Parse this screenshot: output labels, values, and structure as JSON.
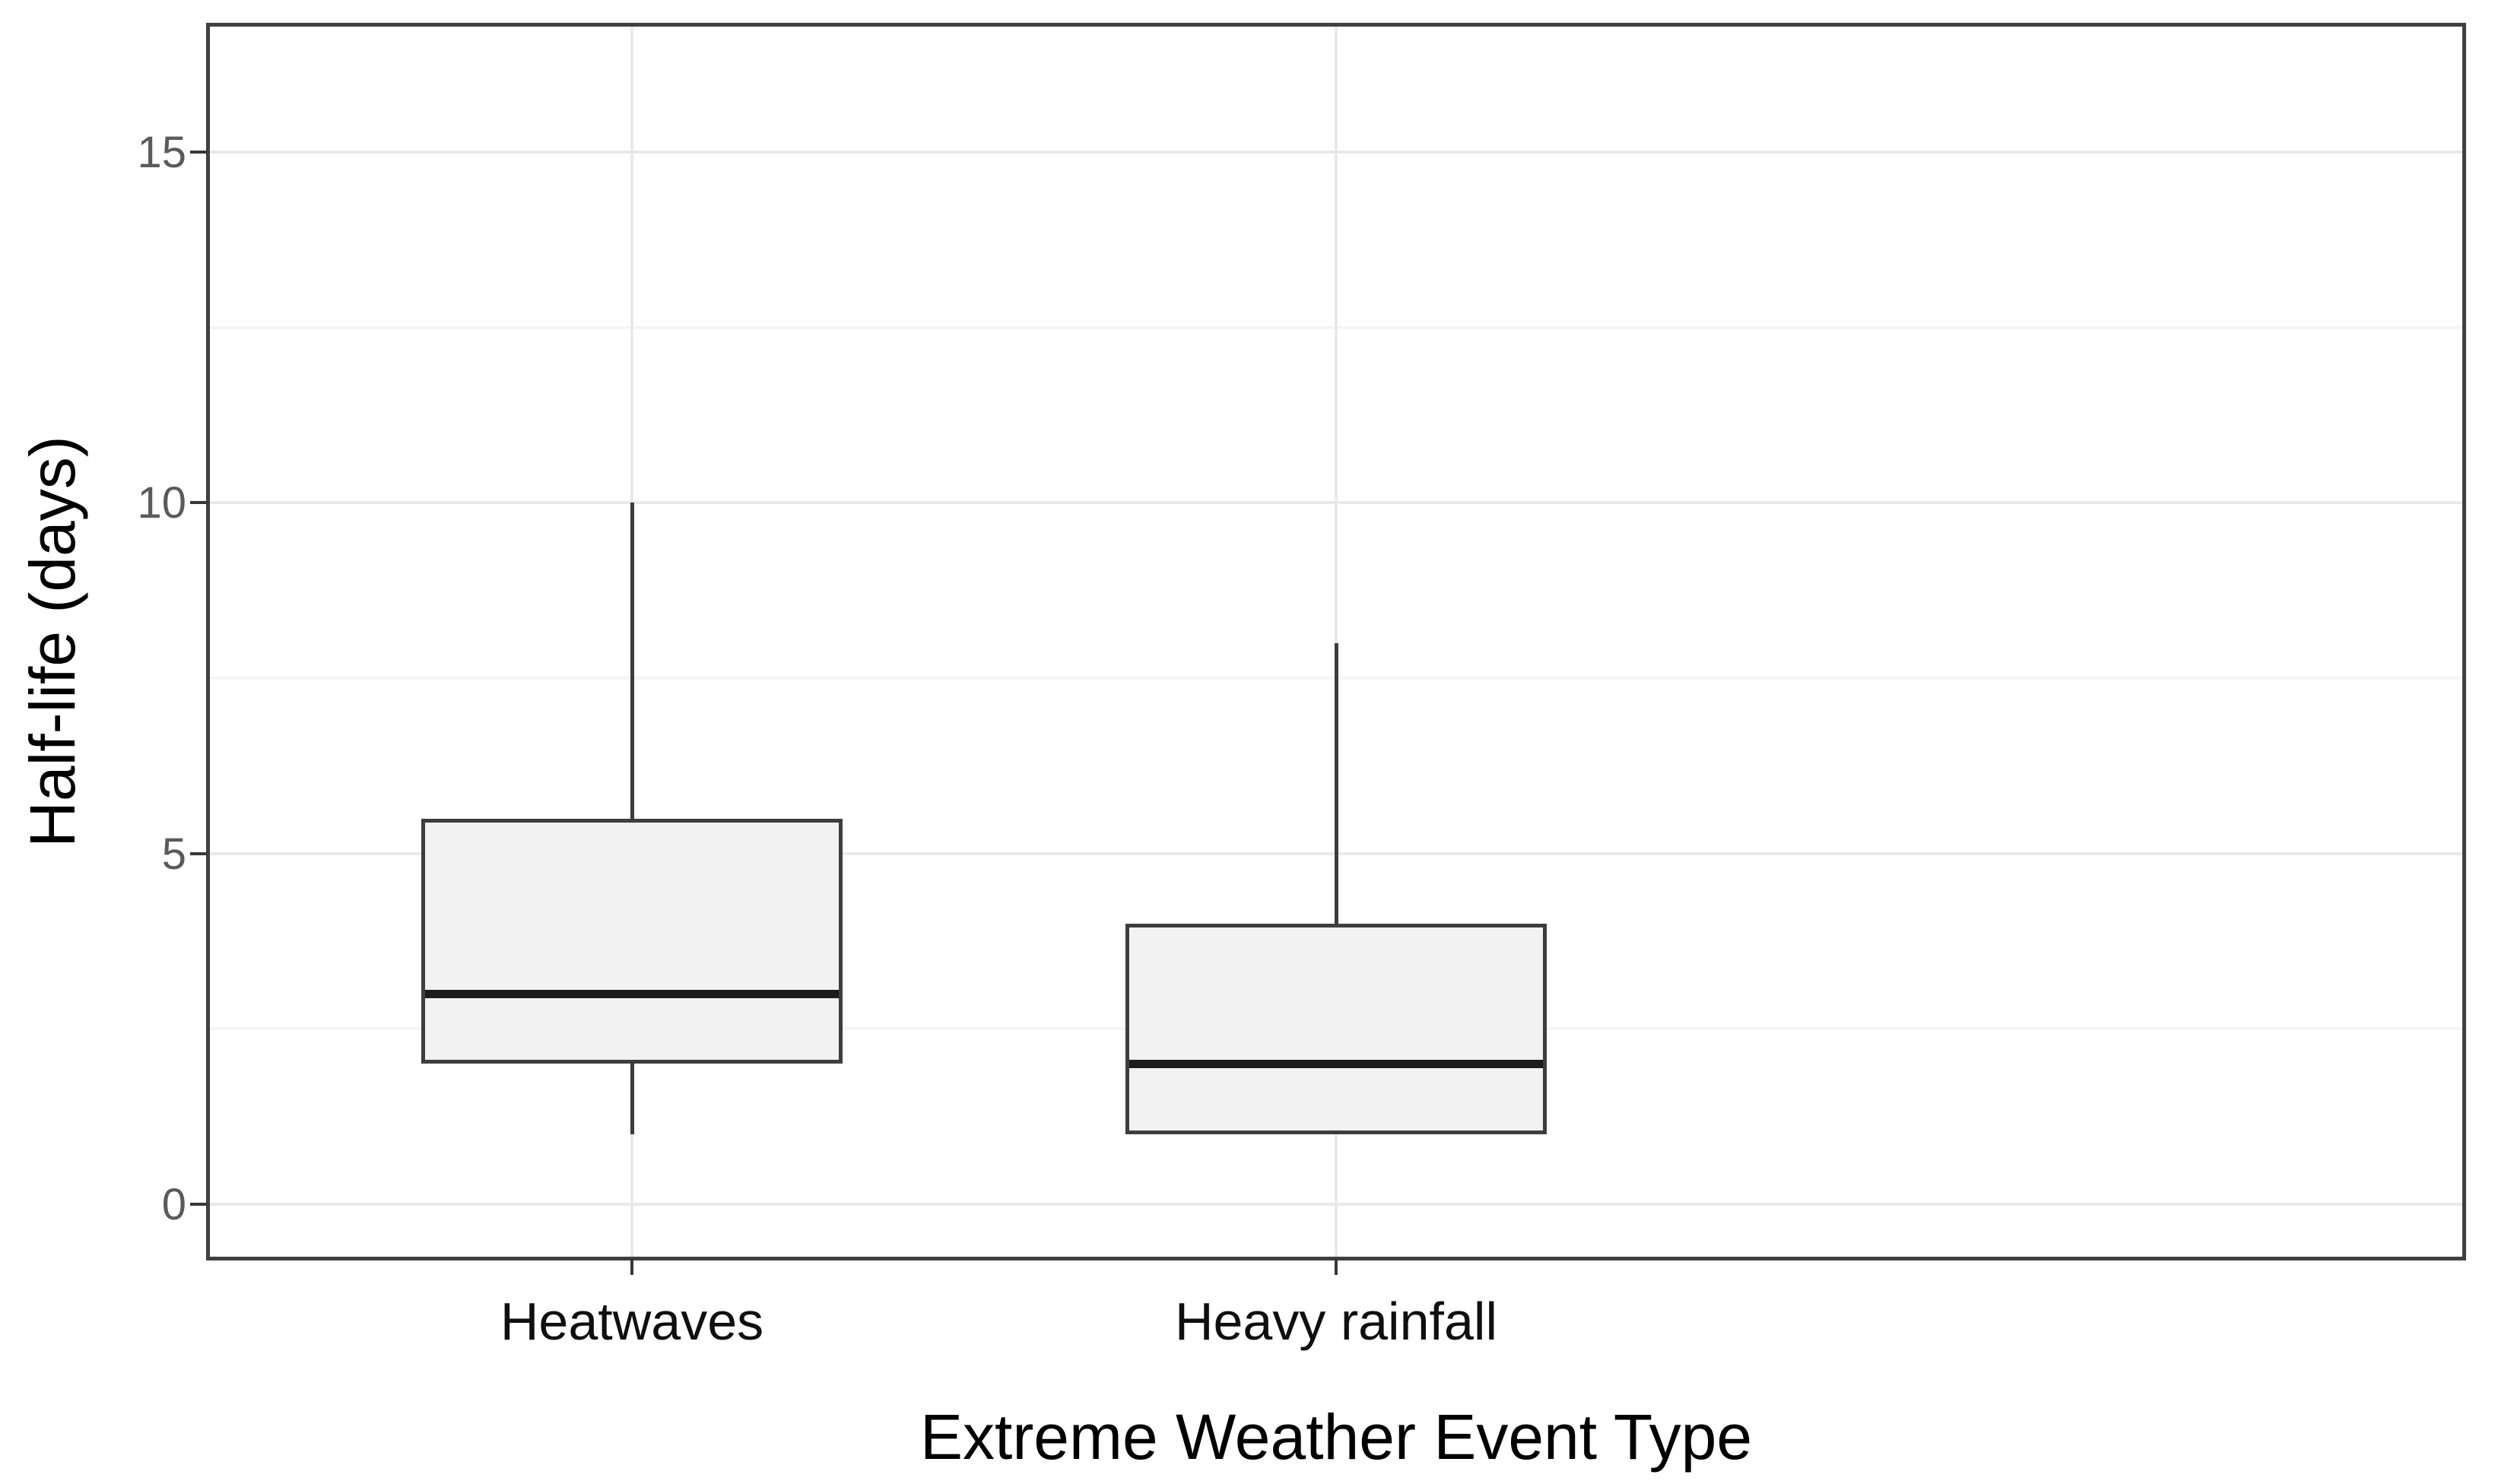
{
  "chart_data": {
    "type": "boxplot",
    "title": "",
    "xlabel": "Extreme Weather Event Type",
    "ylabel": "Half-life (days)",
    "categories": [
      "Heatwaves",
      "Heavy rainfall"
    ],
    "series": [
      {
        "name": "Heatwaves",
        "min": 1,
        "q1": 2,
        "median": 3,
        "q3": 5.5,
        "max": 10
      },
      {
        "name": "Heavy rainfall",
        "min": 1,
        "q1": 1,
        "median": 2,
        "q3": 4,
        "max": 8
      }
    ],
    "y_ticks": [
      "15",
      "10",
      "5",
      "0"
    ],
    "y_tick_values": [
      15,
      10,
      5,
      0
    ],
    "y_minor_gridline_values": [
      12.5,
      7.5,
      2.5
    ],
    "ylim": [
      -0.77,
      16.81
    ],
    "grid": "horizontal major + minor gridlines; vertical major gridline at each category center",
    "legend": "none"
  },
  "colors": {
    "background": "#ffffff",
    "panel_border": "#404040",
    "grid_major": "#e9e9e9",
    "grid_minor": "#f4f4f4",
    "box_fill": "#f2f2f2",
    "box_border": "#3d3d3d",
    "median": "#1c1c1c",
    "whisker": "#3d3d3d",
    "tick_mark": "#383838",
    "y_tick_label": "#5a5a5a",
    "x_tick_label": "#0f0f0f",
    "axis_title": "#000000"
  }
}
